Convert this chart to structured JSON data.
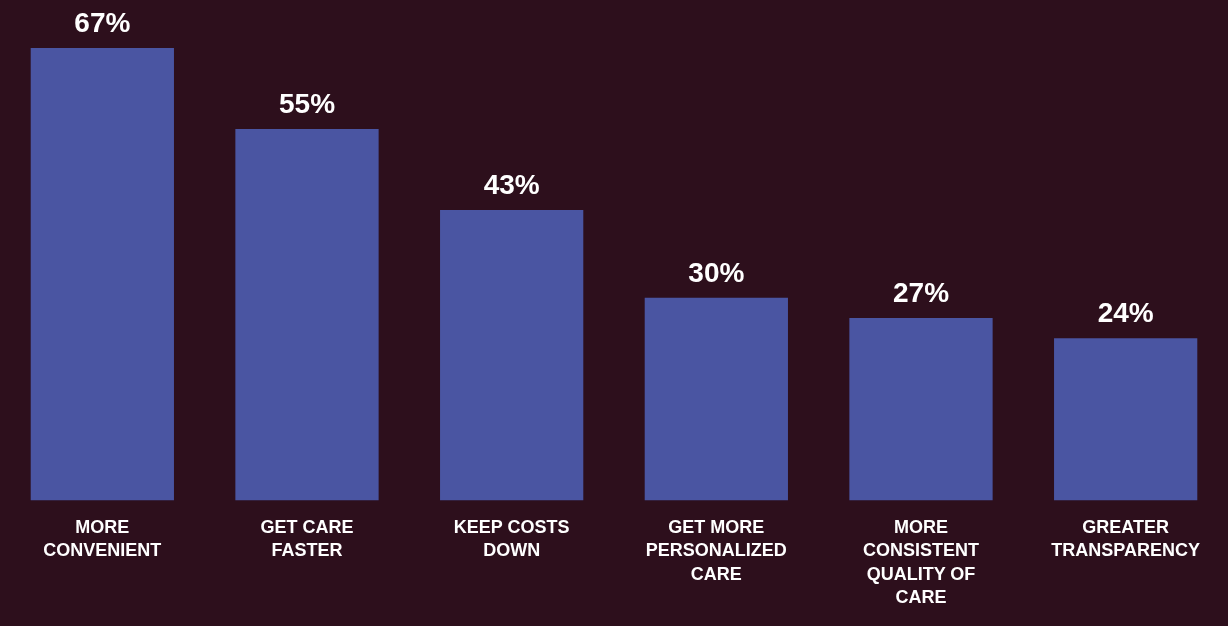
{
  "chart_data": {
    "type": "bar",
    "categories": [
      "MORE CONVENIENT",
      "GET CARE FASTER",
      "KEEP COSTS DOWN",
      "GET MORE PERSONALIZED CARE",
      "MORE CONSISTENT QUALITY OF CARE",
      "GREATER TRANSPARENCY"
    ],
    "values": [
      67,
      55,
      43,
      30,
      27,
      24
    ],
    "value_labels": [
      "67%",
      "55%",
      "43%",
      "30%",
      "27%",
      "24%"
    ],
    "color": "#4a55a2",
    "tick_labels": "x"
  }
}
